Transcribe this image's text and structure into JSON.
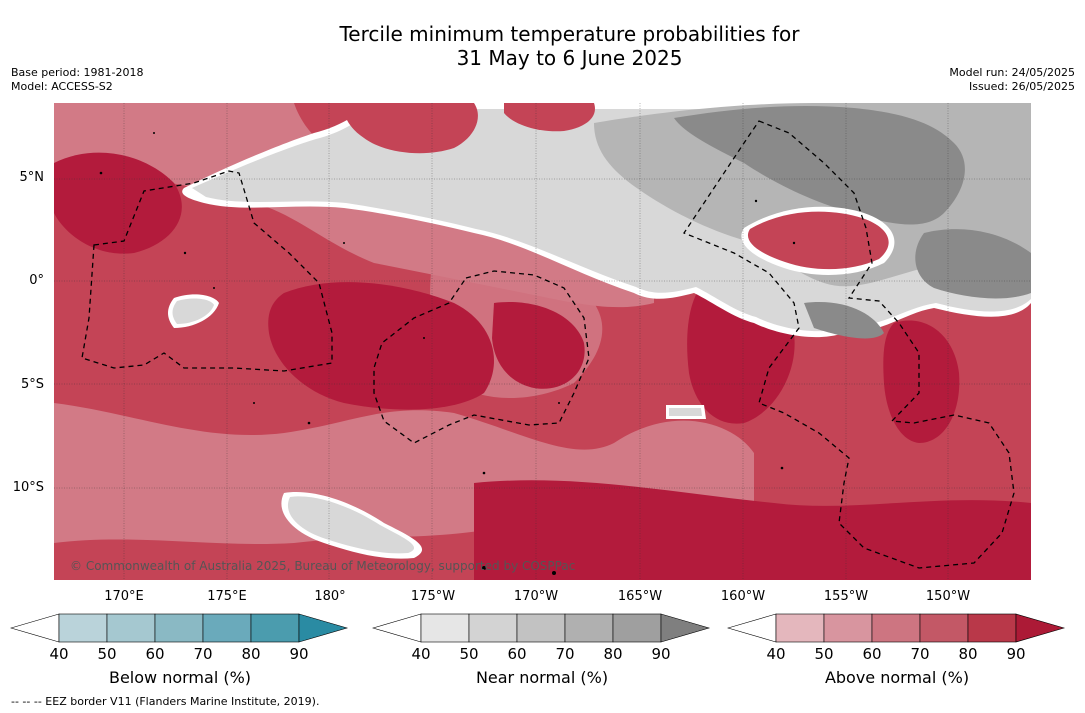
{
  "title": {
    "line1": "Tercile minimum temperature probabilities for",
    "line2": "31 May to 6 June 2025"
  },
  "meta_left": {
    "base_period": "Base period: 1981-2018",
    "model": "Model: ACCESS-S2"
  },
  "meta_right": {
    "model_run": "Model run: 24/05/2025",
    "issued": "Issued: 26/05/2025"
  },
  "map": {
    "lat_labels": [
      "5°N",
      "0°",
      "5°S",
      "10°S"
    ],
    "lon_labels": [
      "170°E",
      "175°E",
      "180°",
      "175°W",
      "170°W",
      "165°W",
      "160°W",
      "155°W",
      "150°W"
    ],
    "credit": "© Commonwealth of Australia 2025, Bureau of Meteorology, supported by COSPPac",
    "colors": {
      "above_strong": "#b31b3c",
      "above_mid": "#c44456",
      "above_light": "#d27a86",
      "near_dark": "#8a8a8a",
      "near_mid": "#b5b5b5",
      "near_light": "#d8d8d8",
      "eez_border": "#000000"
    }
  },
  "colorbars": [
    {
      "title": "Below normal (%)",
      "ticks": [
        "40",
        "50",
        "60",
        "70",
        "80",
        "90"
      ],
      "colors": [
        "#ffffff",
        "#bad3da",
        "#a5c8d0",
        "#8ab9c4",
        "#6aaabb",
        "#4b9cae",
        "#2a8ba3"
      ]
    },
    {
      "title": "Near normal (%)",
      "ticks": [
        "40",
        "50",
        "60",
        "70",
        "80",
        "90"
      ],
      "colors": [
        "#ffffff",
        "#e6e6e6",
        "#d3d3d3",
        "#c2c2c2",
        "#b0b0b0",
        "#9f9f9f",
        "#7f7f7f"
      ]
    },
    {
      "title": "Above normal (%)",
      "ticks": [
        "40",
        "50",
        "60",
        "70",
        "80",
        "90"
      ],
      "colors": [
        "#ffffff",
        "#e4b7bd",
        "#d8959f",
        "#cd7581",
        "#c35866",
        "#b93849",
        "#ac1a36"
      ]
    }
  ],
  "footnote": "--  --  -- EEZ border V11 (Flanders Marine Institute, 2019)."
}
